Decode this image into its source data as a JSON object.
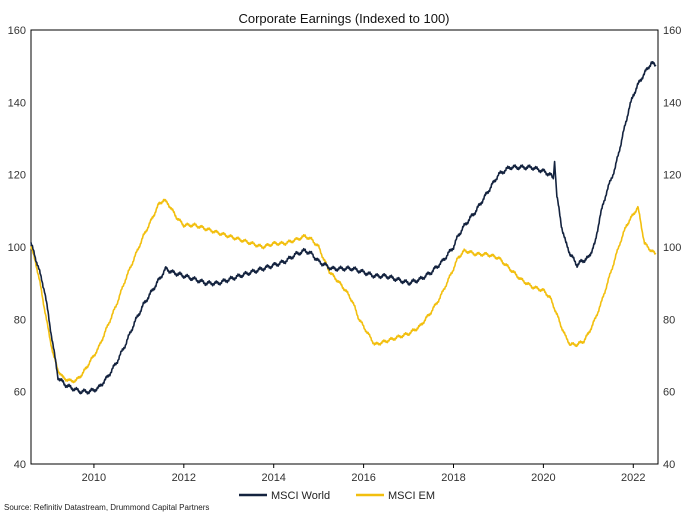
{
  "chart_data": {
    "type": "line",
    "title": "Corporate Earnings (Indexed to 100)",
    "source": "Source: Refinitiv Datastream, Drummond Capital Partners",
    "xlabel": "",
    "ylabel": "",
    "xlim": [
      2008.6,
      2022.55
    ],
    "ylim": [
      40,
      160
    ],
    "yticks": [
      40,
      60,
      80,
      100,
      120,
      140,
      160
    ],
    "xticks": [
      2010,
      2012,
      2014,
      2016,
      2018,
      2020,
      2022
    ],
    "legend": "bottom",
    "series": [
      {
        "name": "MSCI World",
        "color": "#14233f",
        "x": [
          2008.6,
          2008.75,
          2008.9,
          2009.0,
          2009.1,
          2009.2,
          2009.35,
          2009.5,
          2009.7,
          2009.9,
          2010.1,
          2010.3,
          2010.5,
          2010.7,
          2010.9,
          2011.1,
          2011.3,
          2011.5,
          2011.6,
          2011.75,
          2012.0,
          2012.25,
          2012.5,
          2012.75,
          2013.0,
          2013.25,
          2013.5,
          2013.75,
          2014.0,
          2014.25,
          2014.5,
          2014.7,
          2014.85,
          2015.0,
          2015.15,
          2015.3,
          2015.5,
          2015.75,
          2016.0,
          2016.25,
          2016.5,
          2016.75,
          2017.0,
          2017.25,
          2017.5,
          2017.75,
          2018.0,
          2018.1,
          2018.25,
          2018.5,
          2018.75,
          2018.9,
          2019.0,
          2019.25,
          2019.5,
          2019.75,
          2020.0,
          2020.15,
          2020.22,
          2020.25,
          2020.3,
          2020.4,
          2020.5,
          2020.6,
          2020.75,
          2020.85,
          2021.0,
          2021.15,
          2021.25,
          2021.4,
          2021.6,
          2021.75,
          2021.9,
          2022.0,
          2022.15,
          2022.3,
          2022.4,
          2022.5
        ],
        "values": [
          101,
          95,
          88,
          80,
          72,
          64,
          62,
          61,
          60,
          60,
          61,
          64,
          68,
          73,
          79,
          84,
          88,
          92,
          94,
          93,
          92,
          91,
          90,
          90,
          91,
          92,
          93,
          94,
          95,
          96,
          98,
          99,
          98,
          96,
          95,
          94,
          94,
          94,
          93,
          92,
          92,
          91,
          90,
          91,
          93,
          96,
          100,
          103,
          106,
          110,
          115,
          118,
          120,
          122,
          122,
          122,
          121,
          120,
          119,
          124,
          114,
          106,
          101,
          98,
          95,
          96,
          97,
          101,
          108,
          115,
          122,
          130,
          138,
          142,
          146,
          149,
          151,
          150
        ]
      },
      {
        "name": "MSCI EM",
        "color": "#f2bf0f",
        "x": [
          2008.6,
          2008.7,
          2008.8,
          2008.9,
          2009.0,
          2009.1,
          2009.2,
          2009.3,
          2009.45,
          2009.6,
          2009.75,
          2009.9,
          2010.1,
          2010.3,
          2010.5,
          2010.7,
          2010.9,
          2011.1,
          2011.3,
          2011.45,
          2011.55,
          2011.65,
          2011.75,
          2011.85,
          2012.0,
          2012.25,
          2012.5,
          2012.75,
          2013.0,
          2013.25,
          2013.5,
          2013.75,
          2014.0,
          2014.25,
          2014.5,
          2014.7,
          2014.85,
          2015.0,
          2015.1,
          2015.25,
          2015.4,
          2015.6,
          2015.75,
          2015.9,
          2016.1,
          2016.25,
          2016.5,
          2016.75,
          2017.0,
          2017.25,
          2017.5,
          2017.7,
          2017.85,
          2018.0,
          2018.1,
          2018.25,
          2018.5,
          2018.75,
          2019.0,
          2019.25,
          2019.5,
          2019.75,
          2020.0,
          2020.15,
          2020.25,
          2020.4,
          2020.5,
          2020.6,
          2020.75,
          2020.9,
          2021.0,
          2021.15,
          2021.3,
          2021.5,
          2021.7,
          2021.85,
          2022.0,
          2022.1,
          2022.15,
          2022.25,
          2022.4,
          2022.5
        ],
        "values": [
          100,
          96,
          90,
          83,
          76,
          70,
          66,
          64,
          63,
          63,
          65,
          68,
          72,
          78,
          84,
          91,
          97,
          103,
          108,
          112,
          113,
          112,
          110,
          108,
          106,
          106,
          105,
          104,
          103,
          102,
          101,
          100,
          101,
          101,
          102,
          103,
          102,
          100,
          97,
          93,
          91,
          88,
          85,
          80,
          76,
          73,
          74,
          75,
          76,
          78,
          82,
          86,
          90,
          94,
          97,
          99,
          98,
          98,
          97,
          94,
          91,
          89,
          88,
          86,
          83,
          78,
          75,
          73,
          73,
          74,
          76,
          80,
          85,
          93,
          101,
          106,
          109,
          111,
          108,
          101,
          99,
          98
        ]
      }
    ]
  }
}
